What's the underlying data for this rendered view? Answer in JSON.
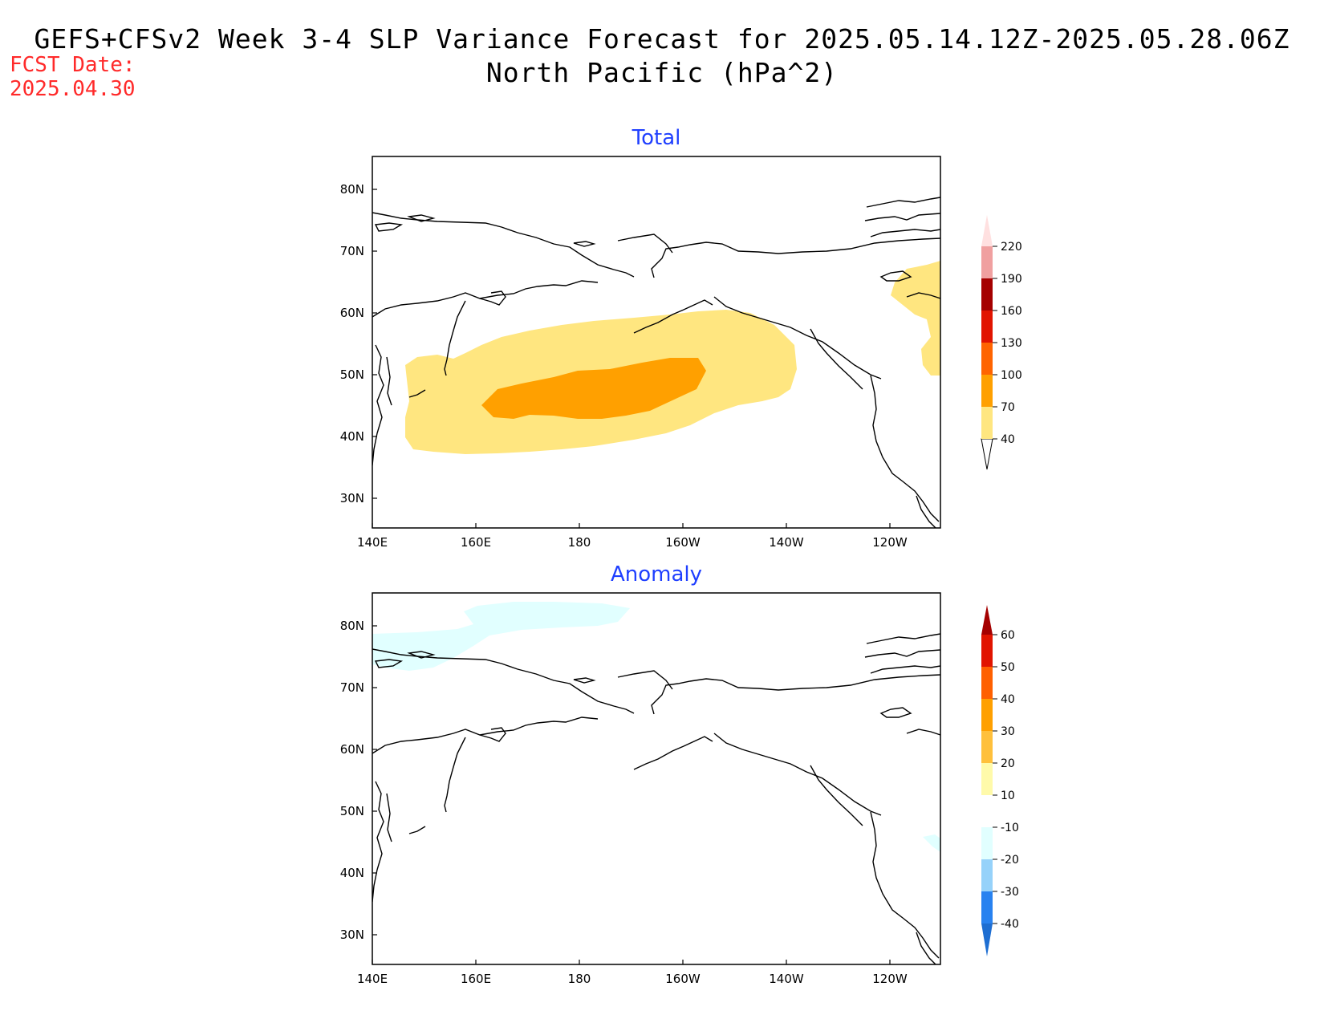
{
  "header": {
    "title_line1": "GEFS+CFSv2 Week 3-4 SLP Variance Forecast for 2025.05.14.12Z-2025.05.28.06Z",
    "title_line2": "North Pacific (hPa^2)",
    "fcst_label": "FCST Date:",
    "fcst_date": "2025.04.30"
  },
  "map_axes": {
    "x_ticks": [
      "140E",
      "160E",
      "180",
      "160W",
      "140W",
      "120W"
    ],
    "y_ticks": [
      "80N",
      "70N",
      "60N",
      "50N",
      "40N",
      "30N"
    ]
  },
  "panels": [
    {
      "title": "Total",
      "colorbar": {
        "labels": [
          "40",
          "70",
          "100",
          "130",
          "160",
          "190",
          "220"
        ],
        "colors": [
          "#ffe680",
          "#ffa000",
          "#ff6400",
          "#e11400",
          "#a50000",
          "#f0a0a0",
          "#ffe0e0"
        ]
      }
    },
    {
      "title": "Anomaly",
      "colorbar": {
        "labels": [
          "-40",
          "-30",
          "-20",
          "-10",
          "10",
          "20",
          "30",
          "40",
          "50",
          "60"
        ],
        "colors": [
          "#1e6ed2",
          "#2882f0",
          "#96d2fa",
          "#e1ffff",
          "#ffffff",
          "#fffaaa",
          "#ffc03c",
          "#ffa000",
          "#ff6000",
          "#e11400",
          "#a50000"
        ]
      }
    }
  ]
}
